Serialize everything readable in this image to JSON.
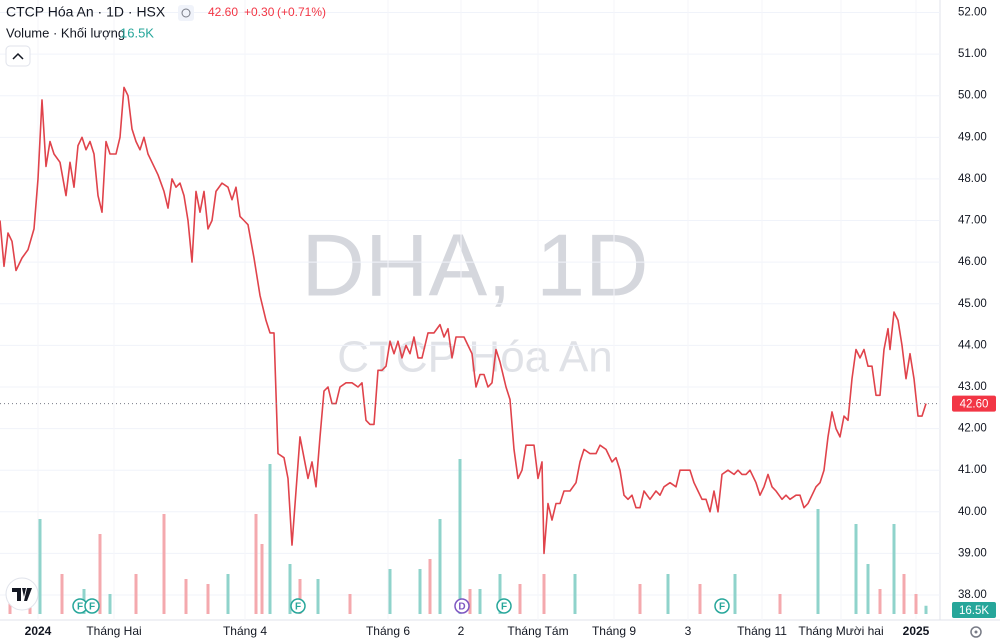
{
  "header": {
    "title": "CTCP Hóa An · 1D · HSX",
    "price": "42.60",
    "change": "+0.30",
    "change_pct": "(+0.71%)",
    "volume_title": "Volume · Khối lượng",
    "volume": "16.5K"
  },
  "watermark": {
    "symbol": "DHA, 1D",
    "name": "CTCP Hóa An"
  },
  "chart_data": {
    "type": "line",
    "xlim": [
      0,
      470
    ],
    "ylim": [
      37.4,
      52.3
    ],
    "grid": true,
    "yticks": [
      {
        "value": 38,
        "label": "38.00"
      },
      {
        "value": 39,
        "label": "39.00"
      },
      {
        "value": 40,
        "label": "40.00"
      },
      {
        "value": 41,
        "label": "41.00"
      },
      {
        "value": 42,
        "label": "42.00"
      },
      {
        "value": 43,
        "label": "43.00"
      },
      {
        "value": 44,
        "label": "44.00"
      },
      {
        "value": 45,
        "label": "45.00"
      },
      {
        "value": 46,
        "label": "46.00"
      },
      {
        "value": 47,
        "label": "47.00"
      },
      {
        "value": 48,
        "label": "48.00"
      },
      {
        "value": 49,
        "label": "49.00"
      },
      {
        "value": 50,
        "label": "50.00"
      },
      {
        "value": 51,
        "label": "51.00"
      },
      {
        "value": 52,
        "label": "52.00"
      }
    ],
    "xticks": [
      {
        "value": 19,
        "label": "2024"
      },
      {
        "value": 57,
        "label": "Tháng Hai"
      },
      {
        "value": 122.5,
        "label": "Tháng 4"
      },
      {
        "value": 194,
        "label": "Tháng 6"
      },
      {
        "value": 230.5,
        "label": "2"
      },
      {
        "value": 269,
        "label": "Tháng Tám"
      },
      {
        "value": 307,
        "label": "Tháng 9"
      },
      {
        "value": 344,
        "label": "3"
      },
      {
        "value": 381,
        "label": "Tháng 11"
      },
      {
        "value": 420.5,
        "label": "Tháng Mười hai"
      },
      {
        "value": 458,
        "label": "2025"
      }
    ],
    "series": [
      {
        "color": "#e0434b",
        "x": [
          0,
          2,
          4,
          6,
          8,
          11,
          14,
          17,
          19,
          21,
          23,
          25,
          27,
          30,
          33,
          35,
          37,
          39,
          41,
          43,
          45,
          47,
          49,
          51,
          53,
          55,
          58,
          60,
          62,
          64,
          66,
          68,
          70,
          72,
          74,
          76,
          79,
          82,
          84,
          86,
          88,
          90,
          92,
          94,
          96,
          98,
          100,
          102,
          104,
          106,
          108,
          111,
          114,
          116,
          118,
          120,
          122,
          124,
          127,
          130,
          133,
          135,
          137,
          139,
          142,
          144,
          146,
          148,
          150,
          152,
          154,
          156,
          158,
          160,
          162,
          164,
          166,
          168,
          170,
          173,
          176,
          179,
          181,
          183,
          185,
          187,
          189,
          191,
          193,
          195,
          197,
          199,
          201,
          203,
          205,
          207,
          209,
          211,
          214,
          217,
          220,
          222,
          224,
          226,
          228,
          230,
          232,
          234,
          236,
          238,
          240,
          242,
          244,
          246,
          248,
          250,
          253,
          255,
          257,
          259,
          261,
          263,
          267,
          269,
          271,
          272,
          274,
          276,
          278,
          280,
          282,
          285,
          288,
          290,
          292,
          295,
          298,
          300,
          303,
          306,
          308,
          310,
          312,
          314,
          316,
          318,
          320,
          322,
          325,
          328,
          330,
          332,
          335,
          338,
          340,
          343,
          345,
          347,
          349,
          351,
          353,
          355,
          357,
          359,
          361,
          364,
          367,
          369,
          371,
          373,
          375,
          378,
          380,
          382,
          384,
          386,
          388,
          391,
          393,
          395,
          398,
          400,
          402,
          404,
          406,
          408,
          410,
          412,
          414,
          416,
          418,
          420,
          422,
          424,
          426,
          428,
          430,
          432,
          434,
          436,
          438,
          440,
          442,
          444,
          445,
          447,
          449,
          451,
          453,
          455,
          457,
          459,
          461,
          463
        ],
        "values": [
          47.0,
          45.9,
          46.7,
          46.5,
          45.8,
          46.1,
          46.3,
          46.8,
          48.0,
          49.9,
          48.3,
          48.9,
          48.6,
          48.4,
          47.6,
          48.4,
          47.8,
          48.8,
          49.0,
          48.7,
          48.9,
          48.6,
          47.6,
          47.2,
          48.9,
          48.6,
          48.6,
          49.0,
          50.2,
          50.0,
          49.2,
          48.9,
          48.7,
          49.0,
          48.6,
          48.4,
          48.1,
          47.7,
          47.3,
          48.0,
          47.8,
          47.9,
          47.6,
          47.0,
          46.0,
          47.7,
          47.2,
          47.7,
          46.8,
          47.0,
          47.7,
          47.9,
          47.8,
          47.5,
          47.8,
          47.1,
          47.0,
          46.9,
          46.1,
          45.2,
          44.6,
          44.3,
          44.3,
          41.4,
          41.3,
          40.8,
          39.2,
          40.5,
          41.8,
          41.3,
          40.8,
          41.2,
          40.6,
          41.8,
          42.9,
          43.0,
          42.6,
          42.6,
          43.0,
          43.1,
          43.1,
          43.0,
          43.1,
          42.2,
          42.1,
          42.1,
          43.4,
          43.4,
          43.5,
          44.1,
          43.8,
          44.1,
          43.7,
          44.0,
          43.8,
          44.2,
          43.7,
          43.7,
          44.3,
          44.3,
          44.5,
          44.2,
          44.4,
          43.7,
          44.2,
          44.2,
          44.2,
          44.0,
          43.8,
          43.0,
          43.3,
          43.3,
          43.0,
          43.1,
          43.9,
          43.6,
          43.0,
          42.7,
          41.5,
          40.8,
          41.0,
          41.6,
          41.6,
          40.8,
          41.2,
          39.0,
          40.2,
          39.8,
          40.2,
          40.2,
          40.5,
          40.5,
          40.7,
          41.2,
          41.5,
          41.4,
          41.4,
          41.6,
          41.5,
          41.2,
          41.3,
          41.0,
          40.4,
          40.3,
          40.4,
          40.1,
          40.1,
          40.5,
          40.3,
          40.5,
          40.4,
          40.6,
          40.7,
          40.6,
          41.0,
          41.0,
          41.0,
          40.7,
          40.5,
          40.3,
          40.3,
          40.0,
          40.5,
          40.0,
          40.9,
          41.0,
          40.9,
          41.0,
          40.9,
          40.9,
          41.0,
          40.7,
          40.4,
          40.6,
          40.9,
          40.6,
          40.5,
          40.3,
          40.4,
          40.3,
          40.4,
          40.4,
          40.1,
          40.2,
          40.4,
          40.6,
          40.7,
          41.0,
          41.8,
          42.4,
          42.0,
          41.8,
          42.3,
          42.2,
          43.2,
          43.9,
          43.7,
          43.9,
          43.5,
          43.5,
          42.8,
          42.8,
          43.9,
          44.4,
          43.9,
          44.8,
          44.6,
          44.0,
          43.2,
          43.8,
          43.2,
          42.3,
          42.3,
          42.6
        ]
      }
    ],
    "last": {
      "value": 42.6,
      "label": "42.60",
      "color": "#f23645"
    },
    "vlim": [
      0,
      300000
    ],
    "volume_up": {
      "color": "#8fd3cb",
      "x": [
        20,
        42,
        55,
        114,
        135,
        145,
        159,
        195,
        210,
        220,
        230,
        240,
        250,
        287.5,
        334,
        367.5,
        409,
        428,
        434,
        447
      ],
      "values": [
        190000,
        50000,
        40000,
        80000,
        300000,
        100000,
        70000,
        90000,
        90000,
        190000,
        310000,
        50000,
        80000,
        80000,
        80000,
        80000,
        210000,
        180000,
        100000,
        180000
      ]
    },
    "volume_down": {
      "color": "#f4a9ae",
      "x": [
        5,
        15,
        31,
        50,
        68,
        82,
        93,
        104,
        128,
        131,
        150,
        175,
        215,
        235,
        260,
        272,
        320,
        350,
        390,
        440,
        452,
        458
      ],
      "values": [
        40000,
        50000,
        80000,
        160000,
        80000,
        200000,
        70000,
        60000,
        200000,
        140000,
        70000,
        40000,
        110000,
        50000,
        60000,
        80000,
        60000,
        60000,
        40000,
        50000,
        80000,
        40000
      ]
    },
    "volume_last": {
      "x": 463,
      "value": 16500,
      "label": "16.5K",
      "color": "#26a69a"
    },
    "events": [
      {
        "x": 40,
        "label": "F"
      },
      {
        "x": 46,
        "label": "F"
      },
      {
        "x": 149,
        "label": "F"
      },
      {
        "x": 231,
        "label": "D"
      },
      {
        "x": 252,
        "label": "F"
      },
      {
        "x": 361,
        "label": "F"
      }
    ]
  }
}
